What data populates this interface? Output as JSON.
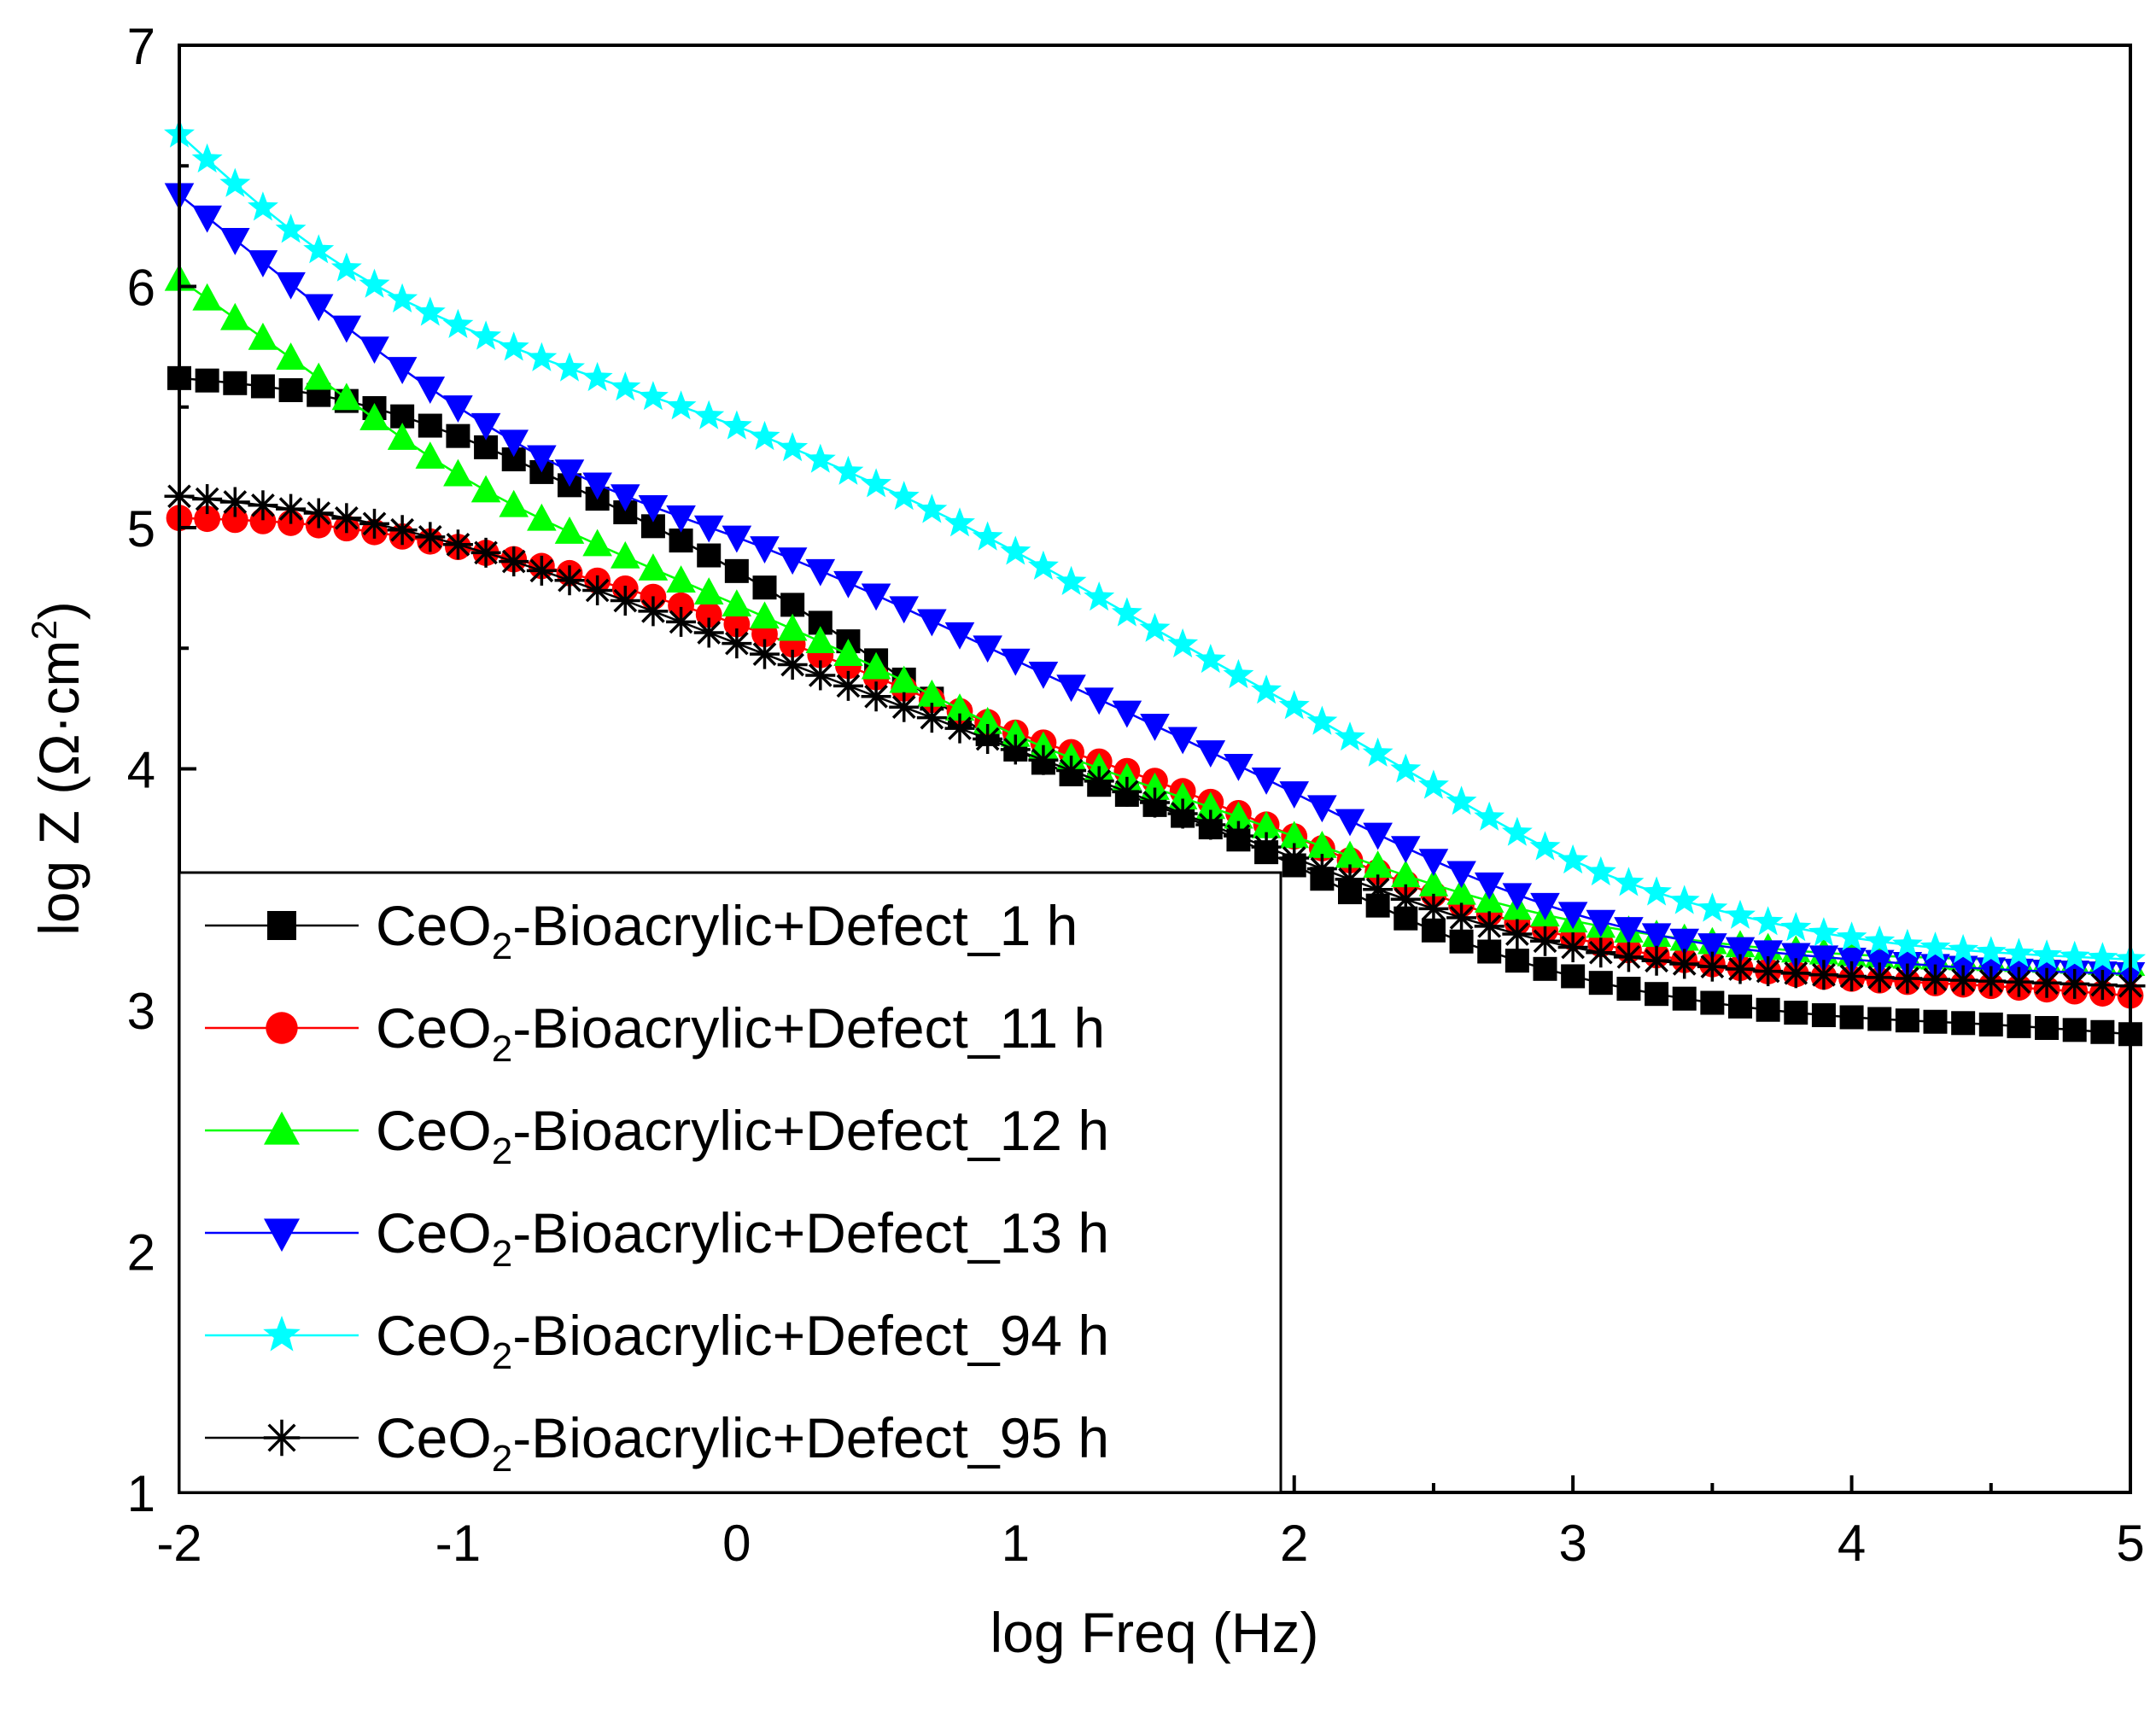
{
  "chart_data": {
    "type": "scatter",
    "title": "",
    "xlabel": "log Freq (Hz)",
    "ylabel": "log Z (Ω·cm²)",
    "ylabel_parts": {
      "main": "log Z (Ω·cm",
      "sup": "2",
      "end": ")"
    },
    "xlim": [
      -2,
      5
    ],
    "ylim": [
      1,
      7
    ],
    "x_ticks": [
      -2,
      -1,
      0,
      1,
      2,
      3,
      4,
      5
    ],
    "y_ticks": [
      1,
      2,
      3,
      4,
      5,
      6,
      7
    ],
    "legend_position": "lower-left",
    "series": [
      {
        "name": "CeO2-Bioacrylic+Defect_1 h",
        "label_parts": {
          "pre": "CeO",
          "sub": "2",
          "post": "-Bioacrylic+Defect_1 h"
        },
        "color": "#000000",
        "marker": "square",
        "x": [
          -2,
          -1.5,
          -1,
          -0.5,
          0,
          0.5,
          1,
          1.5,
          2,
          2.5,
          3,
          3.5,
          4,
          4.5,
          5
        ],
        "y": [
          5.62,
          5.55,
          5.38,
          5.12,
          4.82,
          4.45,
          4.08,
          3.85,
          3.6,
          3.33,
          3.14,
          3.03,
          2.97,
          2.94,
          2.9
        ]
      },
      {
        "name": "CeO2-Bioacrylic+Defect_11 h",
        "label_parts": {
          "pre": "CeO",
          "sub": "2",
          "post": "-Bioacrylic+Defect_11 h"
        },
        "color": "#ff0000",
        "marker": "circle",
        "x": [
          -2,
          -1.5,
          -1,
          -0.5,
          0,
          0.5,
          1,
          1.5,
          2,
          2.5,
          3,
          3.5,
          4,
          4.5,
          5
        ],
        "y": [
          5.04,
          5.01,
          4.92,
          4.78,
          4.6,
          4.38,
          4.15,
          3.95,
          3.72,
          3.48,
          3.3,
          3.19,
          3.13,
          3.1,
          3.06
        ]
      },
      {
        "name": "CeO2-Bioacrylic+Defect_12 h",
        "label_parts": {
          "pre": "CeO",
          "sub": "2",
          "post": "-Bioacrylic+Defect_12 h"
        },
        "color": "#00ff00",
        "marker": "triangle-up",
        "x": [
          -2,
          -1.5,
          -1,
          -0.5,
          0,
          0.5,
          1,
          1.5,
          2,
          2.5,
          3,
          3.5,
          4,
          4.5,
          5
        ],
        "y": [
          6.03,
          5.62,
          5.22,
          4.93,
          4.68,
          4.42,
          4.14,
          3.92,
          3.72,
          3.52,
          3.37,
          3.28,
          3.23,
          3.21,
          3.19
        ]
      },
      {
        "name": "CeO2-Bioacrylic+Defect_13 h",
        "label_parts": {
          "pre": "CeO",
          "sub": "2",
          "post": "-Bioacrylic+Defect_13 h"
        },
        "color": "#0000ff",
        "marker": "triangle-down",
        "x": [
          -2,
          -1.5,
          -1,
          -0.5,
          0,
          0.5,
          1,
          1.5,
          2,
          2.5,
          3,
          3.5,
          4,
          4.5,
          5
        ],
        "y": [
          6.38,
          5.92,
          5.5,
          5.18,
          4.96,
          4.72,
          4.45,
          4.18,
          3.9,
          3.62,
          3.4,
          3.27,
          3.21,
          3.17,
          3.15
        ]
      },
      {
        "name": "CeO2-Bioacrylic+Defect_94 h",
        "label_parts": {
          "pre": "CeO",
          "sub": "2",
          "post": "-Bioacrylic+Defect_94 h"
        },
        "color": "#00ffff",
        "marker": "star",
        "x": [
          -2,
          -1.5,
          -1,
          -0.5,
          0,
          0.5,
          1,
          1.5,
          2,
          2.5,
          3,
          3.5,
          4,
          4.5,
          5
        ],
        "y": [
          6.63,
          6.15,
          5.84,
          5.62,
          5.42,
          5.18,
          4.9,
          4.58,
          4.26,
          3.93,
          3.62,
          3.42,
          3.3,
          3.24,
          3.21
        ]
      },
      {
        "name": "CeO2-Bioacrylic+Defect_95 h",
        "label_parts": {
          "pre": "CeO",
          "sub": "2",
          "post": "-Bioacrylic+Defect_95 h"
        },
        "color": "#000000",
        "marker": "asterisk",
        "x": [
          -2,
          -1.5,
          -1,
          -0.5,
          0,
          0.5,
          1,
          1.5,
          2,
          2.5,
          3,
          3.5,
          4,
          4.5,
          5
        ],
        "y": [
          5.13,
          5.06,
          4.93,
          4.74,
          4.52,
          4.3,
          4.08,
          3.86,
          3.63,
          3.42,
          3.26,
          3.18,
          3.14,
          3.12,
          3.1
        ]
      }
    ]
  }
}
